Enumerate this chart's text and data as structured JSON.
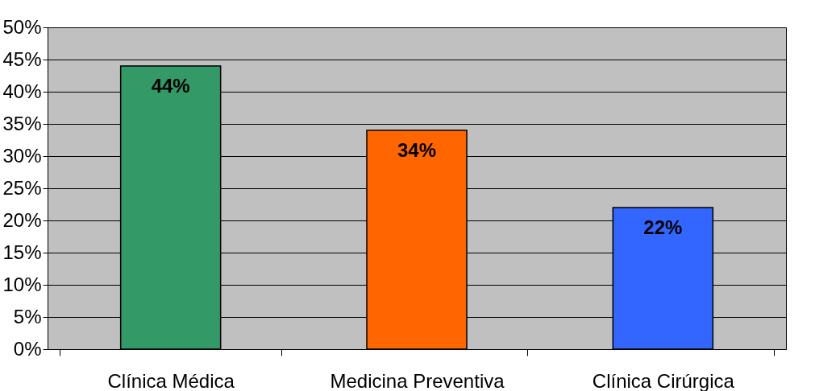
{
  "chart_data": {
    "type": "bar",
    "categories": [
      "Clínica Médica",
      "Medicina Preventiva",
      "Clínica Cirúrgica"
    ],
    "values": [
      44,
      34,
      22
    ],
    "colors": [
      "#339966",
      "#ff6600",
      "#3366ff"
    ],
    "value_labels": [
      "44%",
      "34%",
      "22%"
    ],
    "ylim": [
      0,
      50
    ],
    "yticks": [
      {
        "value": 0,
        "label": "0%"
      },
      {
        "value": 5,
        "label": "5%"
      },
      {
        "value": 10,
        "label": "10%"
      },
      {
        "value": 15,
        "label": "15%"
      },
      {
        "value": 20,
        "label": "20%"
      },
      {
        "value": 25,
        "label": "25%"
      },
      {
        "value": 30,
        "label": "30%"
      },
      {
        "value": 35,
        "label": "35%"
      },
      {
        "value": 40,
        "label": "40%"
      },
      {
        "value": 45,
        "label": "45%"
      },
      {
        "value": 50,
        "label": "50%"
      }
    ],
    "grid": "y",
    "legend": false
  }
}
